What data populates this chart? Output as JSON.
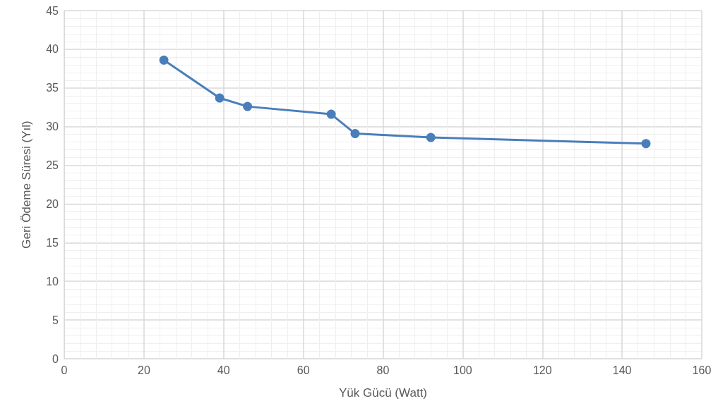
{
  "chart_data": {
    "type": "line",
    "xlabel": "Yük Gücü (Watt)",
    "ylabel": "Geri Ödeme Süresi (Yıl)",
    "x": [
      25,
      39,
      46,
      67,
      73,
      92,
      146
    ],
    "series": [
      {
        "color": "#4a7ebb",
        "values": [
          38.6,
          33.7,
          32.6,
          31.6,
          29.1,
          28.6,
          27.8
        ]
      }
    ],
    "xlim": [
      0,
      160
    ],
    "xticks": [
      0,
      20,
      40,
      60,
      80,
      100,
      120,
      140,
      160
    ],
    "ylim": [
      0,
      45
    ],
    "yticks": [
      0,
      5,
      10,
      15,
      20,
      25,
      30,
      35,
      40,
      45
    ],
    "grid": true,
    "marker": "circle",
    "line_style": "solid"
  }
}
